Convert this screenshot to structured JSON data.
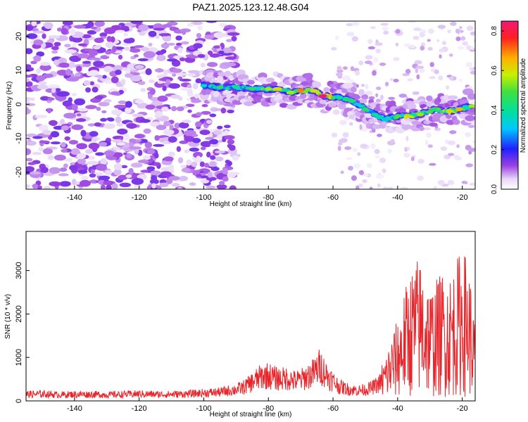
{
  "title": "PAZ1.2025.123.12.48.G04",
  "colors": {
    "snr_line": "#e8252a",
    "frame": "#000000",
    "background": "#ffffff"
  },
  "chart_data": [
    {
      "type": "heatmap",
      "xlabel": "Height of straight line (km)",
      "ylabel": "Frequency (Hz)",
      "xlim": [
        -155,
        -16
      ],
      "ylim": [
        -25,
        24.5
      ],
      "x_ticks": [
        -140,
        -120,
        -100,
        -80,
        -60,
        -40,
        -20
      ],
      "y_ticks": [
        -20,
        -10,
        0,
        10,
        20
      ],
      "colorbar": {
        "label": "Normalized spectral amplitude",
        "range": [
          0,
          0.85
        ],
        "ticks": [
          "0.0",
          "0.2",
          "0.4",
          "0.6",
          "0.8"
        ],
        "colormap": "rainbow (white-violet-blue-cyan-green-yellow-orange-red-magenta)"
      },
      "ridge": [
        {
          "x": -100,
          "y": 5.5,
          "amp": 0.35
        },
        {
          "x": -95,
          "y": 5.0,
          "amp": 0.45
        },
        {
          "x": -90,
          "y": 5.0,
          "amp": 0.4
        },
        {
          "x": -85,
          "y": 4.5,
          "amp": 0.45
        },
        {
          "x": -80,
          "y": 4.5,
          "amp": 0.55
        },
        {
          "x": -77,
          "y": 4.5,
          "amp": 0.6
        },
        {
          "x": -73,
          "y": 3.5,
          "amp": 0.55
        },
        {
          "x": -70,
          "y": 4.0,
          "amp": 0.7
        },
        {
          "x": -66,
          "y": 4.0,
          "amp": 0.6
        },
        {
          "x": -63,
          "y": 2.5,
          "amp": 0.85
        },
        {
          "x": -58,
          "y": 2.0,
          "amp": 0.4
        },
        {
          "x": -54,
          "y": 1.0,
          "amp": 0.45
        },
        {
          "x": -50,
          "y": -1.5,
          "amp": 0.45
        },
        {
          "x": -47,
          "y": -3.0,
          "amp": 0.4
        },
        {
          "x": -44,
          "y": -4.5,
          "amp": 0.35
        },
        {
          "x": -40,
          "y": -3.5,
          "amp": 0.5
        },
        {
          "x": -37,
          "y": -3.5,
          "amp": 0.6
        },
        {
          "x": -33,
          "y": -3.0,
          "amp": 0.55
        },
        {
          "x": -29,
          "y": -1.5,
          "amp": 0.45
        },
        {
          "x": -24,
          "y": -2.0,
          "amp": 0.6
        },
        {
          "x": -21,
          "y": -1.5,
          "amp": 0.65
        },
        {
          "x": -17,
          "y": -0.5,
          "amp": 0.55
        }
      ]
    },
    {
      "type": "line",
      "xlabel": "Height of straight line (km)",
      "ylabel": "SNR (10 * v/v)",
      "xlim": [
        -155,
        -16
      ],
      "ylim": [
        0,
        3900
      ],
      "x_ticks": [
        -140,
        -120,
        -100,
        -80,
        -60,
        -40,
        -20
      ],
      "y_ticks": [
        0,
        1000,
        2000,
        3000
      ],
      "series": [
        {
          "x": [
            -155,
            -150,
            -145,
            -140,
            -135,
            -130,
            -125,
            -120,
            -115,
            -110,
            -105,
            -100,
            -95,
            -90,
            -88,
            -86,
            -84,
            -82,
            -80,
            -78,
            -76,
            -74,
            -72,
            -70,
            -68,
            -66,
            -64,
            -62,
            -60,
            -58,
            -56,
            -54,
            -52,
            -50,
            -48,
            -46,
            -44,
            -42,
            -40,
            -38,
            -36,
            -34,
            -32,
            -30,
            -28,
            -26,
            -24,
            -22,
            -20,
            -18,
            -16
          ],
          "values": [
            150,
            160,
            140,
            150,
            150,
            140,
            150,
            160,
            150,
            150,
            160,
            180,
            200,
            260,
            300,
            380,
            480,
            560,
            580,
            520,
            500,
            520,
            460,
            480,
            560,
            640,
            800,
            600,
            450,
            330,
            280,
            250,
            240,
            260,
            300,
            380,
            520,
            760,
            980,
            1300,
            1550,
            1700,
            1650,
            1350,
            1450,
            1550,
            1500,
            1650,
            1850,
            1650,
            900
          ]
        }
      ]
    }
  ]
}
